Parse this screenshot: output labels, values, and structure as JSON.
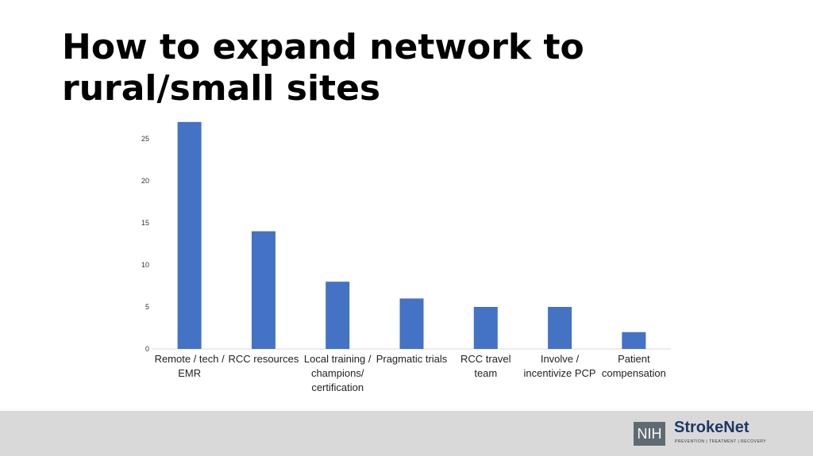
{
  "chart_data": {
    "type": "bar",
    "title": "How to expand network to rural/small sites",
    "categories": [
      "Remote / tech / EMR",
      "RCC resources",
      "Local training / champions/ certification",
      "Pragmatic trials",
      "RCC travel team",
      "Involve / incentivize PCP",
      "Patient compensation"
    ],
    "values": [
      27,
      14,
      8,
      6,
      5,
      5,
      2
    ],
    "color": "#4472c4",
    "ylim": [
      0,
      30
    ],
    "yticks": [
      0,
      5,
      10,
      15,
      20,
      25
    ],
    "grid": false
  },
  "footer": {
    "logo_mark": "NIH",
    "logo_name": "StrokeNet",
    "logo_tagline": "PREVENTION | TREATMENT | RECOVERY"
  }
}
